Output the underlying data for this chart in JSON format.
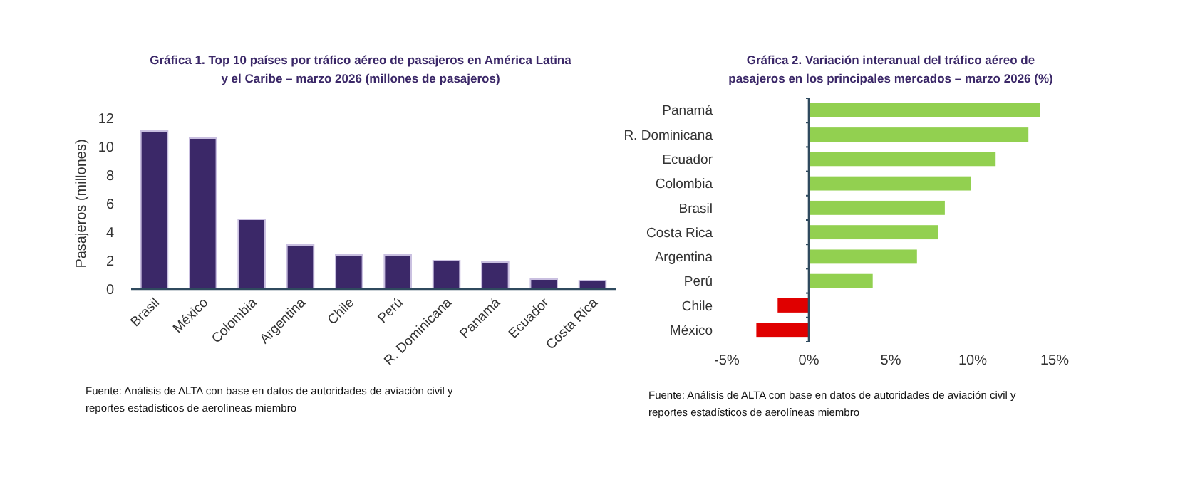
{
  "chart_data": [
    {
      "type": "bar",
      "title": "Gráfica 1. Top 10 países por tráfico aéreo de pasajeros en América Latina y el Caribe – marzo 2026 (millones de pasajeros)",
      "ylabel": "Pasajeros (millones)",
      "categories": [
        "Brasil",
        "México",
        "Colombia",
        "Argentina",
        "Chile",
        "Perú",
        "R. Dominicana",
        "Panamá",
        "Ecuador",
        "Costa Rica"
      ],
      "values": [
        11.1,
        10.6,
        4.9,
        3.1,
        2.4,
        2.4,
        2,
        1.9,
        0.7,
        0.6
      ],
      "color": "#3b2868",
      "ylim": [
        0,
        12
      ],
      "yticks": [
        0,
        2,
        4,
        6,
        8,
        10,
        12
      ],
      "grid": false,
      "annotations": [
        "Fuente: Análisis de ALTA con base en datos de autoridades de aviación civil y reportes estadísticos de aerolíneas miembro"
      ]
    },
    {
      "type": "bar",
      "orientation": "horizontal",
      "title": "Gráfica 2. Variación interanual del tráfico aéreo de pasajeros en los principales mercados – marzo 2026 (%)",
      "categories": [
        "Panamá",
        "R. Dominicana",
        "Ecuador",
        "Colombia",
        "Brasil",
        "Costa Rica",
        "Argentina",
        "Perú",
        "Chile",
        "México"
      ],
      "values": [
        14.1,
        13.4,
        11.4,
        9.9,
        8.3,
        7.9,
        6.6,
        3.9,
        -1.9,
        -3.2
      ],
      "colors": [
        "#92d050",
        "#92d050",
        "#92d050",
        "#92d050",
        "#92d050",
        "#92d050",
        "#92d050",
        "#92d050",
        "#e00000",
        "#e00000"
      ],
      "xlim": [
        -5,
        15
      ],
      "xticks": [
        {
          "value": -5,
          "label": "-5%"
        },
        {
          "value": 0,
          "label": "0%"
        },
        {
          "value": 5,
          "label": "5%"
        },
        {
          "value": 10,
          "label": "10%"
        },
        {
          "value": 15,
          "label": "15%"
        }
      ],
      "grid": false,
      "annotations": [
        "Fuente: Análisis de ALTA con base en datos de autoridades de aviación civil y reportes estadísticos de aerolíneas miembro"
      ]
    }
  ]
}
